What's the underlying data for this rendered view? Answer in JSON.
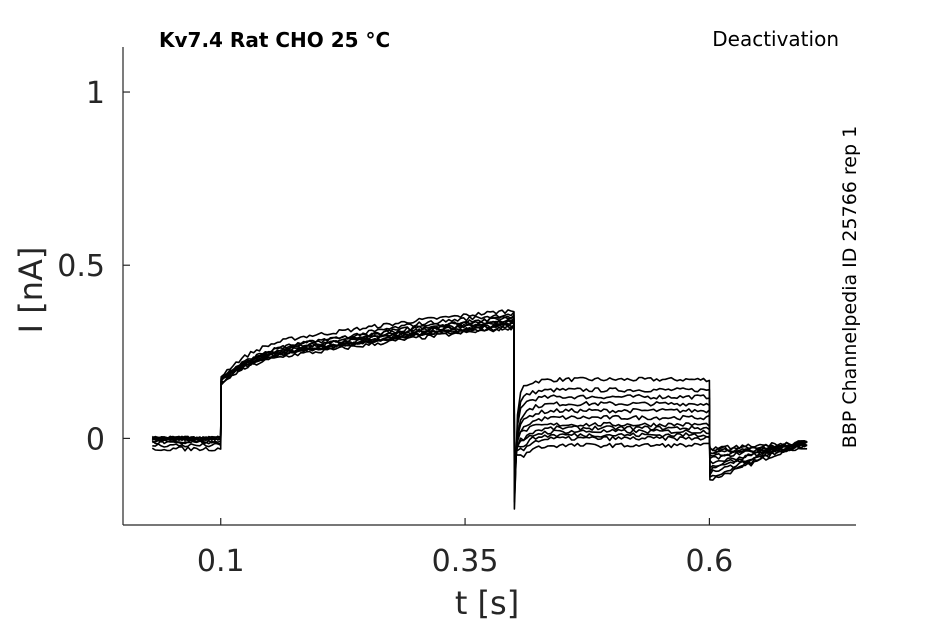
{
  "chart_data": {
    "type": "line",
    "title": "Kv7.4  Rat  CHO  25 °C",
    "protocol": "Deactivation",
    "side_label": "BBP Channelpedia ID 25766 rep 1",
    "xlabel": "t [s]",
    "ylabel": "I [nA]",
    "xlim": [
      0.0,
      0.75
    ],
    "ylim": [
      -0.25,
      1.13
    ],
    "xticks": [
      0.1,
      0.35,
      0.6
    ],
    "xtick_labels": [
      "0.1",
      "0.35",
      "0.6"
    ],
    "yticks": [
      0,
      0.5,
      1
    ],
    "ytick_labels": [
      "0",
      "0.5",
      "1"
    ],
    "grid": false,
    "line_color": "#000000",
    "series": [
      {
        "x": [
          0.03,
          0.1,
          0.1005,
          0.2,
          0.3,
          0.4,
          0.4005,
          0.41,
          0.45,
          0.6,
          0.6005,
          0.7
        ],
        "y": [
          0.0,
          0.0,
          0.17,
          0.26,
          0.3,
          0.32,
          -0.2,
          0.15,
          0.17,
          0.17,
          -0.12,
          -0.01
        ]
      },
      {
        "x": [
          0.03,
          0.1,
          0.1005,
          0.2,
          0.3,
          0.4,
          0.4005,
          0.41,
          0.45,
          0.6,
          0.6005,
          0.7
        ],
        "y": [
          0.0,
          0.0,
          0.17,
          0.27,
          0.31,
          0.34,
          -0.18,
          0.12,
          0.14,
          0.14,
          -0.11,
          -0.01
        ]
      },
      {
        "x": [
          0.03,
          0.1,
          0.1005,
          0.2,
          0.3,
          0.4,
          0.4005,
          0.41,
          0.45,
          0.6,
          0.6005,
          0.7
        ],
        "y": [
          0.0,
          0.0,
          0.16,
          0.26,
          0.3,
          0.33,
          -0.16,
          0.1,
          0.12,
          0.12,
          -0.1,
          -0.01
        ]
      },
      {
        "x": [
          0.03,
          0.1,
          0.1005,
          0.2,
          0.3,
          0.4,
          0.4005,
          0.41,
          0.45,
          0.6,
          0.6005,
          0.7
        ],
        "y": [
          0.0,
          0.0,
          0.17,
          0.28,
          0.32,
          0.35,
          -0.14,
          0.07,
          0.1,
          0.1,
          -0.09,
          -0.01
        ]
      },
      {
        "x": [
          0.03,
          0.1,
          0.1005,
          0.2,
          0.3,
          0.4,
          0.4005,
          0.41,
          0.45,
          0.6,
          0.6005,
          0.7
        ],
        "y": [
          0.0,
          0.0,
          0.18,
          0.3,
          0.34,
          0.37,
          -0.12,
          0.05,
          0.08,
          0.08,
          -0.08,
          -0.01
        ]
      },
      {
        "x": [
          0.03,
          0.1,
          0.1005,
          0.2,
          0.3,
          0.4,
          0.4005,
          0.41,
          0.45,
          0.6,
          0.6005,
          0.7
        ],
        "y": [
          -0.01,
          -0.01,
          0.17,
          0.27,
          0.31,
          0.34,
          -0.1,
          0.03,
          0.06,
          0.06,
          -0.07,
          -0.02
        ]
      },
      {
        "x": [
          0.03,
          0.1,
          0.1005,
          0.2,
          0.3,
          0.4,
          0.4005,
          0.41,
          0.45,
          0.6,
          0.6005,
          0.7
        ],
        "y": [
          0.0,
          0.0,
          0.17,
          0.26,
          0.3,
          0.33,
          -0.08,
          0.02,
          0.04,
          0.04,
          -0.06,
          -0.01
        ]
      },
      {
        "x": [
          0.03,
          0.1,
          0.1005,
          0.2,
          0.3,
          0.4,
          0.4005,
          0.41,
          0.45,
          0.6,
          0.6005,
          0.7
        ],
        "y": [
          -0.02,
          -0.02,
          0.16,
          0.25,
          0.29,
          0.32,
          -0.07,
          0.0,
          0.03,
          0.03,
          -0.05,
          -0.02
        ]
      },
      {
        "x": [
          0.03,
          0.1,
          0.1005,
          0.2,
          0.3,
          0.4,
          0.4005,
          0.41,
          0.45,
          0.6,
          0.6005,
          0.7
        ],
        "y": [
          0.0,
          0.0,
          0.17,
          0.28,
          0.33,
          0.36,
          -0.06,
          -0.01,
          0.02,
          0.02,
          -0.04,
          -0.01
        ]
      },
      {
        "x": [
          0.03,
          0.1,
          0.1005,
          0.2,
          0.3,
          0.4,
          0.4005,
          0.41,
          0.45,
          0.6,
          0.6005,
          0.7
        ],
        "y": [
          -0.03,
          -0.03,
          0.16,
          0.26,
          0.31,
          0.34,
          -0.05,
          -0.02,
          0.01,
          0.01,
          -0.04,
          -0.03
        ]
      },
      {
        "x": [
          0.03,
          0.1,
          0.1005,
          0.2,
          0.3,
          0.4,
          0.4005,
          0.41,
          0.45,
          0.6,
          0.6005,
          0.7
        ],
        "y": [
          0.0,
          0.0,
          0.17,
          0.27,
          0.32,
          0.35,
          -0.04,
          -0.03,
          0.0,
          0.0,
          -0.03,
          -0.02
        ]
      },
      {
        "x": [
          0.03,
          0.1,
          0.1005,
          0.2,
          0.3,
          0.4,
          0.4005,
          0.41,
          0.45,
          0.6,
          0.6005,
          0.7
        ],
        "y": [
          -0.01,
          -0.01,
          0.17,
          0.26,
          0.3,
          0.33,
          -0.04,
          -0.05,
          -0.02,
          -0.02,
          -0.03,
          -0.01
        ]
      }
    ]
  }
}
